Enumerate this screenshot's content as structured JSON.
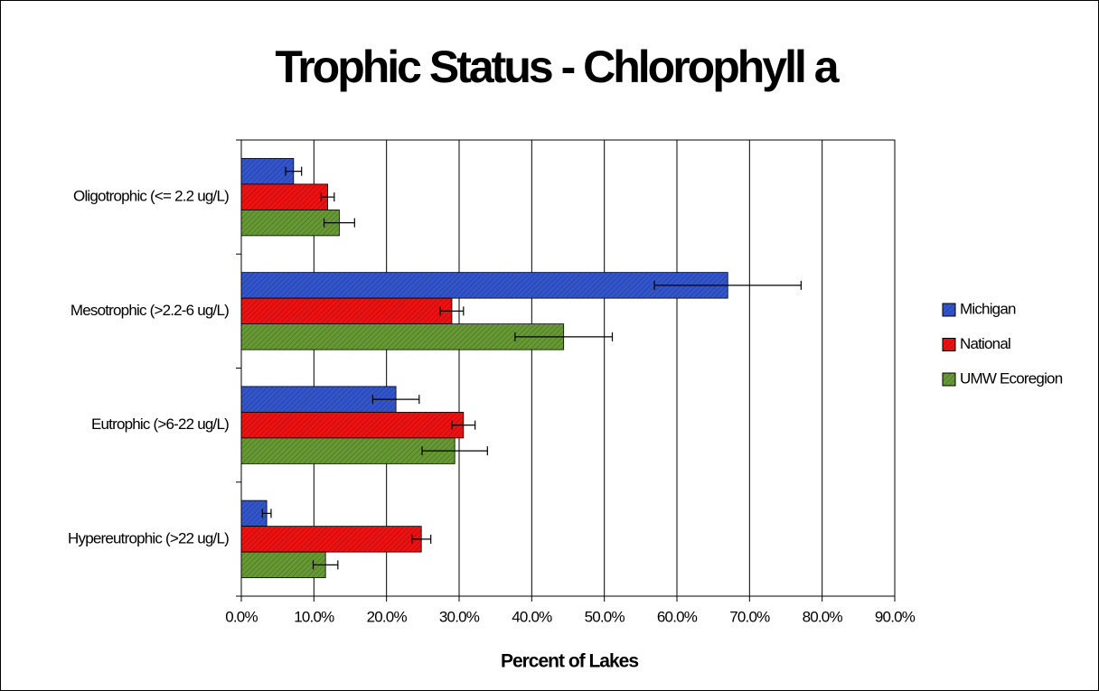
{
  "chart_data": {
    "type": "bar",
    "orientation": "horizontal",
    "title": "Trophic Status - Chlorophyll a",
    "x_label": "Percent of Lakes",
    "categories": [
      "Oligotrophic (<= 2.2 ug/L)",
      "Mesotrophic (>2.2-6 ug/L)",
      "Eutrophic (>6-22 ug/L)",
      "Hypereutrophic (>22 ug/L)"
    ],
    "series": [
      {
        "name": "Michigan",
        "color": "#3355cc",
        "values": [
          7.2,
          67.0,
          21.3,
          3.5
        ],
        "errors": [
          1.1,
          10.1,
          3.2,
          0.6
        ]
      },
      {
        "name": "National",
        "color": "#ee1111",
        "values": [
          11.9,
          29.0,
          30.6,
          24.8
        ],
        "errors": [
          0.9,
          1.6,
          1.6,
          1.3
        ]
      },
      {
        "name": "UMW Ecoregion",
        "color": "#669933",
        "values": [
          13.5,
          44.4,
          29.4,
          11.6
        ],
        "errors": [
          2.1,
          6.7,
          4.5,
          1.7
        ]
      }
    ],
    "xlim": [
      0,
      90
    ],
    "xticks": [
      {
        "value": 0,
        "label": "0.0%"
      },
      {
        "value": 10,
        "label": "10.0%"
      },
      {
        "value": 20,
        "label": "20.0%"
      },
      {
        "value": 30,
        "label": "30.0%"
      },
      {
        "value": 40,
        "label": "40.0%"
      },
      {
        "value": 50,
        "label": "50.0%"
      },
      {
        "value": 60,
        "label": "60.0%"
      },
      {
        "value": 70,
        "label": "70.0%"
      },
      {
        "value": 80,
        "label": "80.0%"
      },
      {
        "value": 90,
        "label": "90.0%"
      }
    ],
    "grid": true,
    "legend": "right"
  }
}
